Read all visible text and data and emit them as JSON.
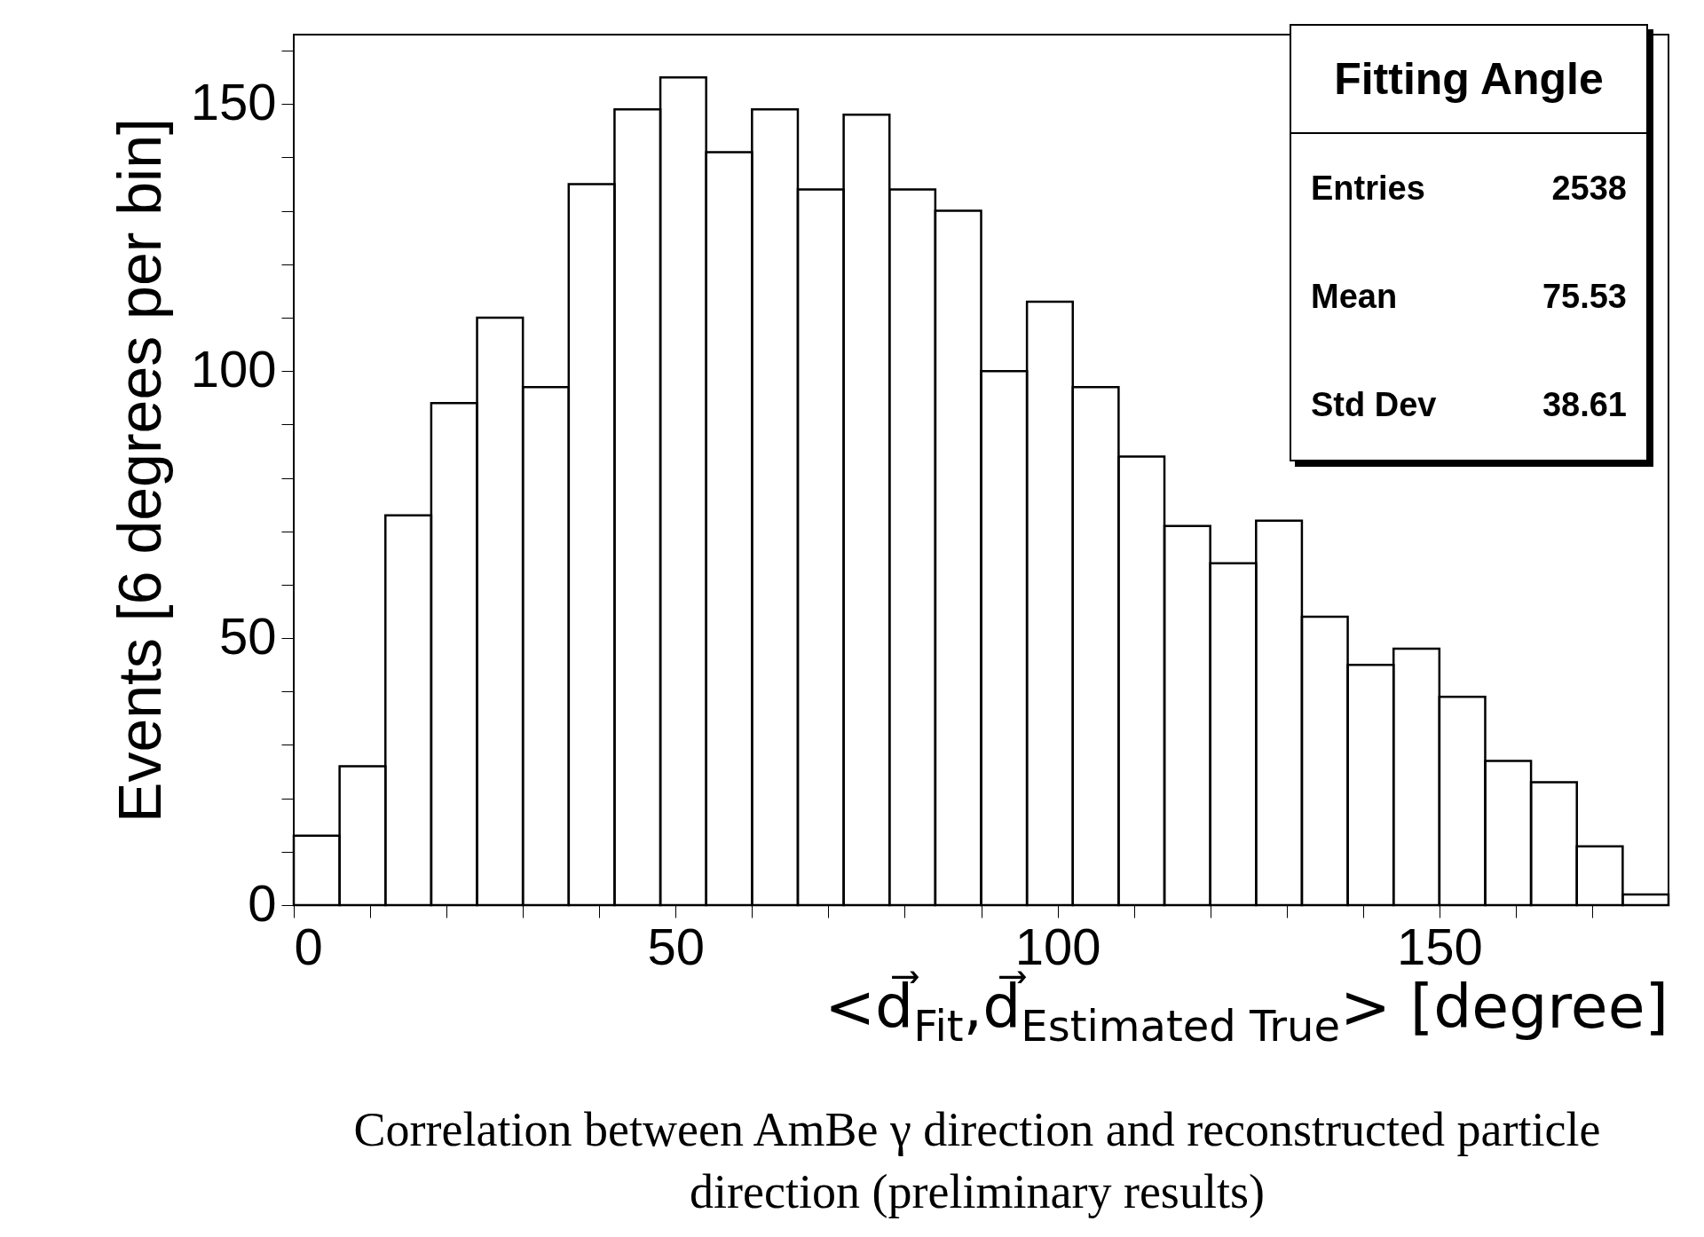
{
  "chart_data": {
    "type": "histogram",
    "xlabel": "<d⃗$_{Fit}$,d⃗$_{Estimated True}$> [degree]",
    "ylabel": "Events [6 degrees per bin]",
    "bins": [
      0,
      6,
      12,
      18,
      24,
      30,
      36,
      42,
      48,
      54,
      60,
      66,
      72,
      78,
      84,
      90,
      96,
      102,
      108,
      114,
      120,
      126,
      132,
      138,
      144,
      150,
      156,
      162,
      168,
      174,
      180
    ],
    "values": [
      13,
      26,
      73,
      94,
      110,
      97,
      135,
      149,
      155,
      141,
      149,
      134,
      148,
      134,
      130,
      100,
      113,
      97,
      84,
      71,
      64,
      72,
      54,
      45,
      48,
      39,
      27,
      23,
      11,
      2
    ],
    "color": "#000000",
    "xlim": [
      0,
      180
    ],
    "ylim": [
      0,
      163
    ],
    "xticks": [
      0,
      {
        "value": 10,
        "label": null
      },
      {
        "value": 20,
        "label": null
      },
      {
        "value": 30,
        "label": null
      },
      {
        "value": 40,
        "label": null
      },
      50,
      {
        "value": 60,
        "label": null
      },
      {
        "value": 70,
        "label": null
      },
      {
        "value": 80,
        "label": null
      },
      {
        "value": 90,
        "label": null
      },
      100,
      {
        "value": 110,
        "label": null
      },
      {
        "value": 120,
        "label": null
      },
      {
        "value": 130,
        "label": null
      },
      {
        "value": 140,
        "label": null
      },
      150,
      {
        "value": 160,
        "label": null
      },
      {
        "value": 170,
        "label": null
      }
    ],
    "yticks": [
      0,
      {
        "value": 10,
        "label": null
      },
      {
        "value": 20,
        "label": null
      },
      {
        "value": 30,
        "label": null
      },
      {
        "value": 40,
        "label": null
      },
      50,
      {
        "value": 60,
        "label": null
      },
      {
        "value": 70,
        "label": null
      },
      {
        "value": 80,
        "label": null
      },
      {
        "value": 90,
        "label": null
      },
      100,
      {
        "value": 110,
        "label": null
      },
      {
        "value": 120,
        "label": null
      },
      {
        "value": 130,
        "label": null
      },
      {
        "value": 140,
        "label": null
      },
      150,
      {
        "value": 160,
        "label": null
      }
    ],
    "grid": false,
    "annotations": [
      "Fitting Angle",
      "Entries",
      "2538",
      "Mean",
      "75.53",
      "Std Dev",
      "38.61",
      "Correlation between  AmBe γ direction and reconstructed particle direction (preliminary results)"
    ]
  }
}
